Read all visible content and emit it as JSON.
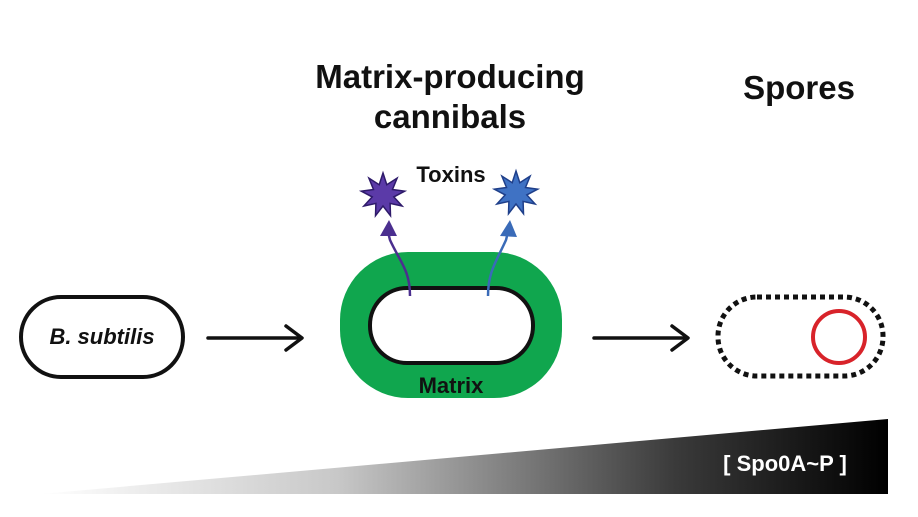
{
  "headings": {
    "cannibals_line1": "Matrix-producing",
    "cannibals_line2": "cannibals",
    "spores": "Spores"
  },
  "labels": {
    "bsubtilis": "B. subtilis",
    "toxins": "Toxins",
    "matrix": "Matrix",
    "gradient": "[ Spo0A~P ]"
  },
  "colors": {
    "matrix_green": "#10a64e",
    "toxin_purple": "#5b3aa8",
    "toxin_blue": "#3f72c4",
    "spore_red": "#d8232a",
    "outline": "#111111"
  },
  "icons": {
    "toxin_left": "starburst-icon",
    "toxin_right": "starburst-icon"
  }
}
